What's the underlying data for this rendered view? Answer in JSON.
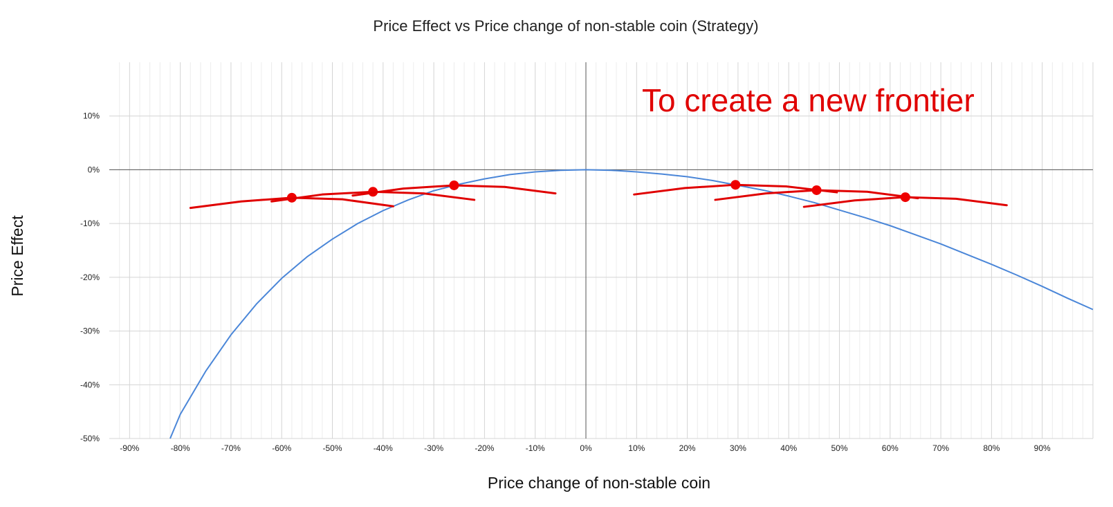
{
  "chart_data": {
    "type": "line",
    "title": "Price Effect vs Price change of non-stable coin (Strategy)",
    "xlabel": "Price change of non-stable coin",
    "ylabel": "Price Effect",
    "xlim": [
      -94,
      100
    ],
    "ylim": [
      -50,
      20
    ],
    "x_ticks": [
      -90,
      -80,
      -70,
      -60,
      -50,
      -40,
      -30,
      -20,
      -10,
      0,
      10,
      20,
      30,
      40,
      50,
      60,
      70,
      80,
      90
    ],
    "x_tick_labels": [
      "-90%",
      "-80%",
      "-70%",
      "-60%",
      "-50%",
      "-40%",
      "-30%",
      "-20%",
      "-10%",
      "0%",
      "10%",
      "20%",
      "30%",
      "40%",
      "50%",
      "60%",
      "70%",
      "80%",
      "90%"
    ],
    "y_ticks": [
      -50,
      -40,
      -30,
      -20,
      -10,
      0,
      10
    ],
    "y_tick_labels": [
      "-50%",
      "-40%",
      "-30%",
      "-20%",
      "-10%",
      "0%",
      "10%"
    ],
    "grid": true,
    "annotation": {
      "text": "To create a new frontier",
      "color": "#e00000"
    },
    "series": [
      {
        "color": "#4a86d8",
        "points": [
          [
            -82,
            -50
          ],
          [
            -80,
            -45.5
          ],
          [
            -75,
            -37.5
          ],
          [
            -70,
            -30.7
          ],
          [
            -65,
            -25.0
          ],
          [
            -60,
            -20.2
          ],
          [
            -55,
            -16.2
          ],
          [
            -50,
            -12.9
          ],
          [
            -45,
            -10.0
          ],
          [
            -40,
            -7.6
          ],
          [
            -35,
            -5.6
          ],
          [
            -30,
            -3.9
          ],
          [
            -25,
            -2.7
          ],
          [
            -20,
            -1.7
          ],
          [
            -15,
            -0.9
          ],
          [
            -10,
            -0.4
          ],
          [
            -5,
            -0.1
          ],
          [
            0,
            0
          ],
          [
            5,
            -0.1
          ],
          [
            10,
            -0.4
          ],
          [
            15,
            -0.8
          ],
          [
            20,
            -1.3
          ],
          [
            25,
            -2.0
          ],
          [
            30,
            -2.9
          ],
          [
            35,
            -3.8
          ],
          [
            40,
            -4.9
          ],
          [
            45,
            -6.1
          ],
          [
            50,
            -7.5
          ],
          [
            55,
            -8.9
          ],
          [
            60,
            -10.4
          ],
          [
            65,
            -12.1
          ],
          [
            70,
            -13.8
          ],
          [
            75,
            -15.7
          ],
          [
            80,
            -17.6
          ],
          [
            85,
            -19.6
          ],
          [
            90,
            -21.7
          ],
          [
            95,
            -23.9
          ],
          [
            100,
            -26.0
          ]
        ]
      },
      {
        "color": "#e00000",
        "marker_color": "#ee0000",
        "arcs": [
          {
            "marker": [
              -58,
              -5.2
            ],
            "points": [
              [
                -78,
                -7.1
              ],
              [
                -68,
                -5.9
              ],
              [
                -58,
                -5.2
              ],
              [
                -48,
                -5.5
              ],
              [
                -38,
                -6.8
              ]
            ]
          },
          {
            "marker": [
              -42,
              -4.1
            ],
            "points": [
              [
                -62,
                -5.9
              ],
              [
                -52,
                -4.6
              ],
              [
                -42,
                -4.1
              ],
              [
                -32,
                -4.4
              ],
              [
                -22,
                -5.6
              ]
            ]
          },
          {
            "marker": [
              -26,
              -2.9
            ],
            "points": [
              [
                -46,
                -4.8
              ],
              [
                -36,
                -3.5
              ],
              [
                -26,
                -2.9
              ],
              [
                -16,
                -3.2
              ],
              [
                -6,
                -4.4
              ]
            ]
          },
          {
            "marker": [
              29.5,
              -2.8
            ],
            "points": [
              [
                9.5,
                -4.6
              ],
              [
                19.5,
                -3.4
              ],
              [
                29.5,
                -2.8
              ],
              [
                39.5,
                -3.1
              ],
              [
                49.5,
                -4.2
              ]
            ]
          },
          {
            "marker": [
              45.5,
              -3.8
            ],
            "points": [
              [
                25.5,
                -5.6
              ],
              [
                35.5,
                -4.4
              ],
              [
                45.5,
                -3.8
              ],
              [
                55.5,
                -4.1
              ],
              [
                65.5,
                -5.3
              ]
            ]
          },
          {
            "marker": [
              63,
              -5.1
            ],
            "points": [
              [
                43,
                -6.9
              ],
              [
                53,
                -5.7
              ],
              [
                63,
                -5.1
              ],
              [
                73,
                -5.4
              ],
              [
                83,
                -6.6
              ]
            ]
          }
        ]
      }
    ]
  }
}
